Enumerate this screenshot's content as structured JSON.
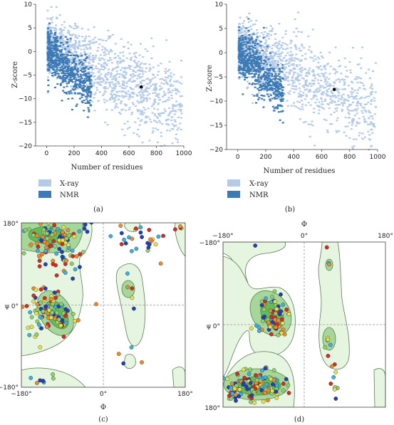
{
  "colors": {
    "xray": "#b3cbe8",
    "nmr": "#3d7ab5",
    "region_outer": "#e6f5df",
    "region_mid": "#a5d79a",
    "region_core": "#63bb5a",
    "region_edge": "#5a7f54",
    "dot_palette": [
      "#1f3fbf",
      "#3cb0e0",
      "#8fd16a",
      "#e8e14a",
      "#f08a2a",
      "#d82a20"
    ]
  },
  "chart_data": [
    {
      "type": "scatter",
      "panel_label": "(a)",
      "xlabel": "Number of residues",
      "ylabel": "Z-score",
      "xlim": [
        -80,
        1000
      ],
      "ylim": [
        -20,
        10
      ],
      "xticks": [
        "0",
        "200",
        "400",
        "600",
        "800",
        "1000"
      ],
      "yticks": [
        "10",
        "5",
        "0",
        "−5",
        "−10",
        "−15",
        "−20"
      ],
      "xtick_values": [
        0,
        200,
        400,
        600,
        800,
        1000
      ],
      "ytick_values": [
        10,
        5,
        0,
        -5,
        -10,
        -15,
        -20
      ],
      "series": [
        {
          "name": "X-ray",
          "description_bands": [
            [
              0,
              5,
              -3
            ],
            [
              100,
              2,
              -8
            ],
            [
              200,
              0,
              -10
            ],
            [
              400,
              -4,
              -12
            ],
            [
              600,
              -6,
              -14
            ],
            [
              800,
              -8,
              -16
            ],
            [
              1000,
              -9,
              -17
            ]
          ]
        },
        {
          "name": "NMR",
          "description_bands": [
            [
              0,
              3,
              -2
            ],
            [
              100,
              -1,
              -9
            ],
            [
              200,
              -3,
              -10
            ],
            [
              300,
              -5,
              -11
            ]
          ]
        }
      ],
      "highlight": {
        "x": 690,
        "y": -7.5
      }
    },
    {
      "type": "scatter",
      "panel_label": "(b)",
      "xlabel": "Number of residues",
      "ylabel": "Z-score",
      "xlim": [
        -80,
        1000
      ],
      "ylim": [
        -20,
        10
      ],
      "xticks": [
        "0",
        "200",
        "400",
        "600",
        "800",
        "1000"
      ],
      "yticks": [
        "10",
        "5",
        "0",
        "−5",
        "−10",
        "−15",
        "−20"
      ],
      "xtick_values": [
        0,
        200,
        400,
        600,
        800,
        1000
      ],
      "ytick_values": [
        10,
        5,
        0,
        -5,
        -10,
        -15,
        -20
      ],
      "series": [
        {
          "name": "X-ray"
        },
        {
          "name": "NMR"
        }
      ],
      "highlight": {
        "x": 690,
        "y": -7.6
      }
    },
    {
      "type": "scatter",
      "panel_label": "(c)",
      "xlabel": "Φ",
      "ylabel": "ψ",
      "xlim": [
        -180,
        180
      ],
      "ylim": [
        -180,
        180
      ],
      "xticks": [
        "−180°",
        "0°",
        "180°"
      ],
      "yticks": [
        "180°",
        "0°",
        "−180°"
      ],
      "ytick_labels_left": [
        "180°",
        "ψ 0°",
        "−180°"
      ]
    },
    {
      "type": "scatter",
      "panel_label": "(d)",
      "xlabel": "Φ",
      "ylabel": "ψ",
      "xlim": [
        -180,
        180
      ],
      "ylim": [
        -180,
        180
      ],
      "xticks": [
        "−180°",
        "0°",
        "180°"
      ],
      "yticks": [
        "−180°",
        "0°",
        "180°"
      ],
      "ytick_labels_left": [
        "−180°",
        "ψ 0°",
        "180°"
      ]
    }
  ],
  "legends": {
    "a": [
      {
        "label": "X-ray"
      },
      {
        "label": "NMR"
      }
    ],
    "b": [
      {
        "label": "X-ray"
      },
      {
        "label": "NMR"
      }
    ]
  }
}
